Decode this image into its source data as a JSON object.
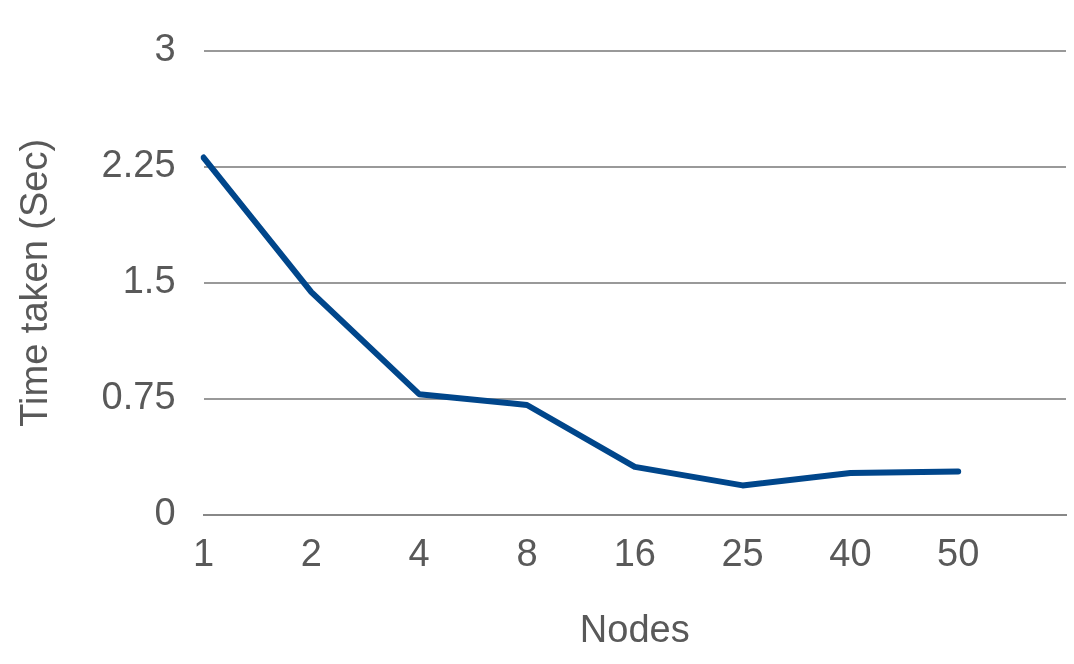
{
  "chart_data": {
    "type": "line",
    "xlabel": "Nodes",
    "ylabel": "Time taken (Sec)",
    "categories": [
      "1",
      "2",
      "4",
      "8",
      "16",
      "25",
      "40",
      "50",
      null
    ],
    "series": [
      {
        "color": "#00468b",
        "values": [
          2.31,
          1.44,
          0.78,
          0.71,
          0.31,
          0.19,
          0.27,
          0.28,
          null
        ]
      }
    ],
    "ylim": [
      0,
      3
    ],
    "yticks": [
      0,
      0.75,
      1.5,
      2.25,
      3
    ],
    "grid": "y",
    "legend": false,
    "marker": "none",
    "line_style": "solid"
  }
}
